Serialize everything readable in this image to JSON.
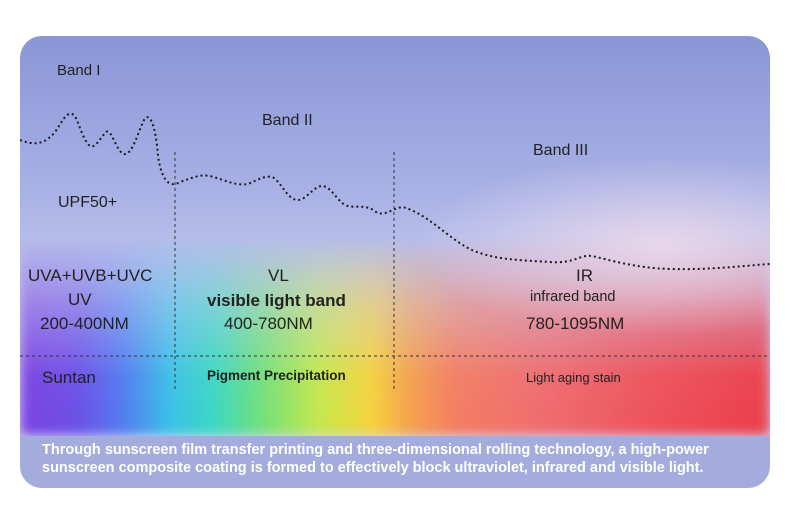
{
  "bands": {
    "band1": "Band I",
    "band2": "Band II",
    "band3": "Band III"
  },
  "uv": {
    "rating": "UPF50+",
    "types": "UVA+UVB+UVC",
    "name": "UV",
    "range": "200-400NM",
    "effect": "Suntan"
  },
  "vl": {
    "name": "VL",
    "desc": "visible light band",
    "range": "400-780NM",
    "effect": "Pigment Precipitation"
  },
  "ir": {
    "name": "IR",
    "desc": "infrared band",
    "range": "780-1095NM",
    "effect": "Light aging stain"
  },
  "footer": {
    "line1": "Through sunscreen film transfer printing and three-dimensional rolling technology, a high-power",
    "line2": "sunscreen composite coating is formed to effectively block ultraviolet, infrared and visible light."
  },
  "colors": {
    "curve": "#1a1a1a",
    "text": "#222222",
    "footer_text": "#ffffff"
  }
}
